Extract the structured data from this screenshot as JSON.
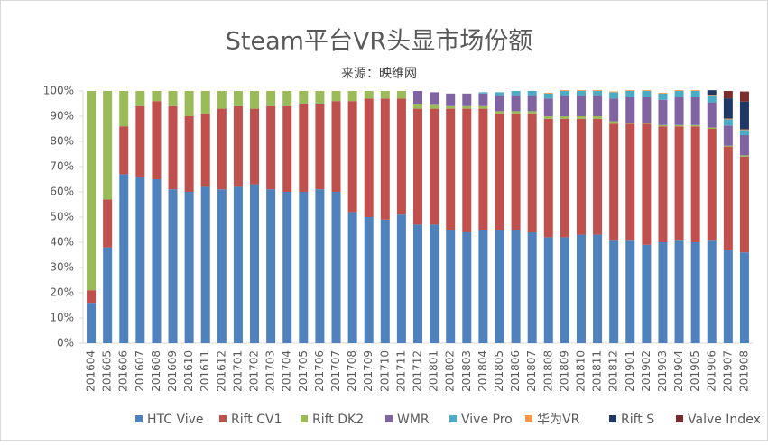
{
  "chart_data": {
    "type": "stacked-bar",
    "title": "Steam平台VR头显市场份额",
    "subtitle": "来源：映维网",
    "categories": [
      "201604",
      "201605",
      "201606",
      "201607",
      "201608",
      "201609",
      "201610",
      "201611",
      "201612",
      "201701",
      "201702",
      "201703",
      "201704",
      "201705",
      "201706",
      "201707",
      "201708",
      "201709",
      "201710",
      "201711",
      "201712",
      "201801",
      "201802",
      "201803",
      "201804",
      "201805",
      "201806",
      "201807",
      "201808",
      "201809",
      "201810",
      "201811",
      "201812",
      "201901",
      "201902",
      "201903",
      "201904",
      "201905",
      "201906",
      "201907",
      "201908"
    ],
    "series": [
      {
        "name": "HTC Vive",
        "color": "#4f81bd",
        "values": [
          16,
          38,
          67,
          66,
          65,
          61,
          60,
          62,
          61,
          62,
          63,
          61,
          60,
          60,
          61,
          60,
          52,
          50,
          49,
          51,
          47,
          47,
          45,
          44,
          45,
          45,
          45,
          44,
          42,
          42,
          43,
          43,
          41,
          41,
          39,
          40,
          41,
          40,
          41,
          37,
          36
        ]
      },
      {
        "name": "Rift CV1",
        "color": "#c0504d",
        "values": [
          5,
          19,
          19,
          28,
          31,
          33,
          30,
          29,
          32,
          32,
          30,
          33,
          34,
          35,
          34,
          36,
          44,
          47,
          48,
          46,
          46,
          46,
          48,
          49,
          48,
          46,
          46,
          47,
          47,
          47,
          46,
          46,
          46,
          46,
          48,
          46,
          45,
          46,
          44,
          41,
          38
        ]
      },
      {
        "name": "Rift DK2",
        "color": "#9bbb59",
        "values": [
          79,
          43,
          14,
          6,
          4,
          6,
          10,
          9,
          7,
          6,
          7,
          6,
          6,
          5,
          5,
          4,
          4,
          3,
          3,
          3,
          2,
          1.5,
          1,
          1,
          1,
          1,
          1,
          1,
          1,
          1,
          1,
          1,
          1,
          0.5,
          0.5,
          0.5,
          0.5,
          0.5,
          0.5,
          0.3,
          0.5
        ]
      },
      {
        "name": "WMR",
        "color": "#8064a2",
        "values": [
          null,
          null,
          null,
          null,
          null,
          null,
          null,
          null,
          null,
          null,
          null,
          null,
          null,
          null,
          null,
          null,
          null,
          null,
          null,
          null,
          5,
          5,
          5,
          5,
          5,
          6,
          6,
          6,
          7,
          8,
          8,
          8,
          9,
          10,
          10,
          10,
          11,
          11,
          10,
          8,
          8
        ]
      },
      {
        "name": "Vive Pro",
        "color": "#4bacc6",
        "values": [
          null,
          null,
          null,
          null,
          null,
          null,
          null,
          null,
          null,
          null,
          null,
          null,
          null,
          null,
          null,
          null,
          null,
          null,
          null,
          null,
          null,
          null,
          null,
          null,
          0.5,
          1.5,
          2,
          2,
          2,
          2,
          2,
          2,
          2.5,
          2.5,
          2.5,
          2.5,
          2.5,
          2.5,
          2.5,
          2.5,
          2
        ]
      },
      {
        "name": "华为VR",
        "color": "#f79646",
        "values": [
          null,
          null,
          null,
          null,
          null,
          null,
          null,
          null,
          null,
          null,
          null,
          null,
          null,
          null,
          null,
          null,
          null,
          null,
          null,
          null,
          null,
          null,
          null,
          null,
          null,
          null,
          null,
          null,
          0.3,
          0.3,
          0.3,
          0.3,
          0.3,
          0.3,
          0.3,
          0.3,
          0.3,
          0.3,
          0.3,
          0.3,
          0.3
        ]
      },
      {
        "name": "Rift S",
        "color": "#1f3864",
        "values": [
          null,
          null,
          null,
          null,
          null,
          null,
          null,
          null,
          null,
          null,
          null,
          null,
          null,
          null,
          null,
          null,
          null,
          null,
          null,
          null,
          null,
          null,
          null,
          null,
          null,
          null,
          null,
          null,
          null,
          null,
          null,
          null,
          null,
          null,
          null,
          null,
          null,
          null,
          2,
          8,
          11
        ]
      },
      {
        "name": "Valve Index",
        "color": "#7b2c2c",
        "values": [
          null,
          null,
          null,
          null,
          null,
          null,
          null,
          null,
          null,
          null,
          null,
          null,
          null,
          null,
          null,
          null,
          null,
          null,
          null,
          null,
          null,
          null,
          null,
          null,
          null,
          null,
          null,
          null,
          null,
          null,
          null,
          null,
          null,
          null,
          null,
          null,
          null,
          null,
          null,
          2.9,
          4
        ]
      }
    ],
    "ylim": [
      0,
      100
    ],
    "yticks": [
      {
        "value": 0,
        "label": "0%"
      },
      {
        "value": 10,
        "label": "10%"
      },
      {
        "value": 20,
        "label": "20%"
      },
      {
        "value": 30,
        "label": "30%"
      },
      {
        "value": 40,
        "label": "40%"
      },
      {
        "value": 50,
        "label": "50%"
      },
      {
        "value": 60,
        "label": "60%"
      },
      {
        "value": 70,
        "label": "70%"
      },
      {
        "value": 80,
        "label": "80%"
      },
      {
        "value": 90,
        "label": "90%"
      },
      {
        "value": 100,
        "label": "100%"
      }
    ],
    "legend": "bottom"
  }
}
